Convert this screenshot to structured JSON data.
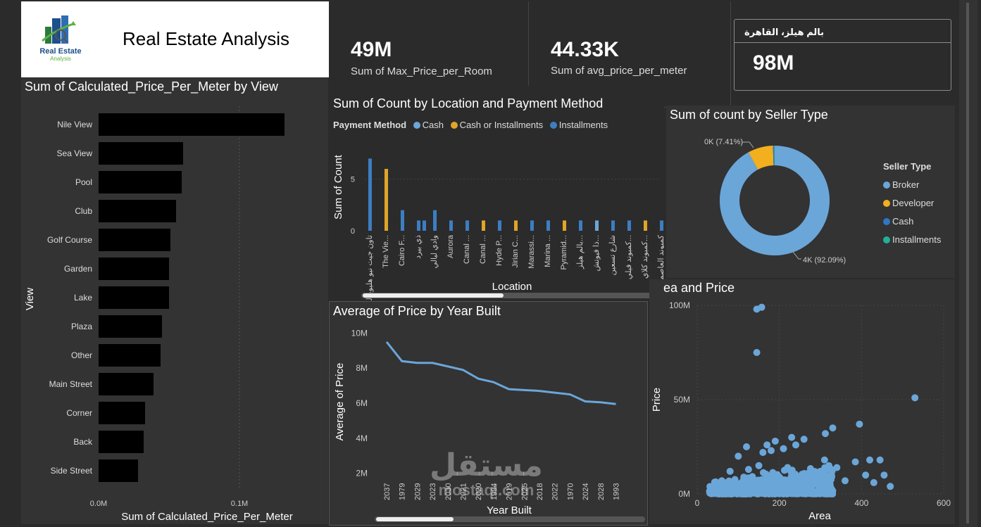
{
  "header": {
    "logo_line1": "Real Estate",
    "logo_line2": "Analysis",
    "title": "Real Estate Analysis"
  },
  "cards": [
    {
      "value": "49M",
      "label": "Sum of Max_Price_per_Room"
    },
    {
      "value": "44.33K",
      "label": "Sum of avg_price_per_meter"
    }
  ],
  "slicer": {
    "title": "بالم هيلز، القاهرة",
    "value": "98M"
  },
  "watermark": {
    "line1": "مستقل",
    "line2": "mostaql.com"
  },
  "colors": {
    "cash": "#6ba6d9",
    "cash_or_installments": "#e0a42a",
    "installments": "#3d7ec2",
    "broker": "#6ba6d9",
    "developer": "#f2b01e",
    "seller_cash": "#2b78c4",
    "seller_installments": "#21b09a"
  },
  "chart_data": [
    {
      "id": "view_bar",
      "type": "bar",
      "orientation": "horizontal",
      "title": "Sum of Calculated_Price_Per_Meter by View",
      "xlabel": "Sum of Calculated_Price_Per_Meter",
      "ylabel": "View",
      "categories": [
        "Nile View",
        "Sea View",
        "Pool",
        "Club",
        "Golf Course",
        "Garden",
        "Lake",
        "Plaza",
        "Other",
        "Main Street",
        "Corner",
        "Back",
        "Side Street"
      ],
      "values": [
        0.132,
        0.06,
        0.059,
        0.055,
        0.051,
        0.05,
        0.05,
        0.045,
        0.044,
        0.039,
        0.033,
        0.032,
        0.028
      ],
      "xlim": [
        0,
        0.16
      ],
      "xticks": [
        "0.0M",
        "0.1M"
      ],
      "bar_color": "#000000"
    },
    {
      "id": "location_column",
      "type": "bar",
      "title": "Sum of Count by Location and Payment Method",
      "xlabel": "Location",
      "ylabel": "Sum of Count",
      "legend_title": "Payment Method",
      "legend": [
        "Cash",
        "Cash or Installments",
        "Installments"
      ],
      "ylim": [
        0,
        7.5
      ],
      "yticks": [
        "0",
        "5"
      ],
      "categories": [
        "تاون جيت نيو هليوبوليس",
        "The Vie...",
        "Cairo F...",
        "ذي بيرد",
        "وادي ليالي",
        "Aurora",
        "Canal ...",
        "Canal ...",
        "Hyde P...",
        "Jirian C...",
        "Marassi...",
        "Marina ...",
        "Pyramid...",
        "بالم هيلز...",
        "ذا فيوتش...",
        "شارع تسعين",
        "كمبوند فيلي...",
        "كمبوند كلاي...",
        "كمبوند العاصمة"
      ],
      "bars": [
        {
          "cat": 0,
          "series": "Installments",
          "value": 7
        },
        {
          "cat": 1,
          "series": "Cash or Installments",
          "value": 6
        },
        {
          "cat": 2,
          "series": "Installments",
          "value": 2
        },
        {
          "cat": 3,
          "series": "Installments",
          "value": 1
        },
        {
          "cat": 3,
          "series": "Installments",
          "value": 1
        },
        {
          "cat": 4,
          "series": "Installments",
          "value": 2
        },
        {
          "cat": 5,
          "series": "Installments",
          "value": 1
        },
        {
          "cat": 6,
          "series": "Installments",
          "value": 1
        },
        {
          "cat": 7,
          "series": "Cash or Installments",
          "value": 1
        },
        {
          "cat": 8,
          "series": "Installments",
          "value": 1
        },
        {
          "cat": 9,
          "series": "Cash or Installments",
          "value": 1
        },
        {
          "cat": 10,
          "series": "Installments",
          "value": 1
        },
        {
          "cat": 11,
          "series": "Installments",
          "value": 1
        },
        {
          "cat": 12,
          "series": "Cash or Installments",
          "value": 1
        },
        {
          "cat": 13,
          "series": "Installments",
          "value": 1
        },
        {
          "cat": 14,
          "series": "Cash",
          "value": 1
        },
        {
          "cat": 15,
          "series": "Installments",
          "value": 1
        },
        {
          "cat": 16,
          "series": "Installments",
          "value": 1
        },
        {
          "cat": 17,
          "series": "Cash or Installments",
          "value": 1
        },
        {
          "cat": 18,
          "series": "Installments",
          "value": 1
        }
      ]
    },
    {
      "id": "seller_donut",
      "type": "pie",
      "title": "Sum of count by Seller Type",
      "legend_title": "Seller Type",
      "legend": [
        "Broker",
        "Developer",
        "Cash",
        "Installments"
      ],
      "slices": [
        {
          "name": "Broker",
          "value": 92.09,
          "label": "4K (92.09%)"
        },
        {
          "name": "Developer",
          "value": 7.41,
          "label": "0K (7.41%)"
        },
        {
          "name": "Cash",
          "value": 0.3,
          "label": ""
        },
        {
          "name": "Installments",
          "value": 0.2,
          "label": ""
        }
      ]
    },
    {
      "id": "price_line",
      "type": "line",
      "title": "Average of Price by Year Built",
      "xlabel": "Year Built",
      "ylabel": "Average of Price",
      "x": [
        "2037",
        "1979",
        "2029",
        "2023",
        "2030",
        "2021",
        "2020",
        "1994",
        "2019",
        "2025",
        "2018",
        "2022",
        "1970",
        "2024",
        "2028",
        "1993"
      ],
      "values": [
        9.5,
        8.4,
        8.3,
        8.3,
        8.1,
        7.9,
        7.4,
        7.2,
        6.8,
        6.75,
        6.7,
        6.6,
        6.5,
        6.1,
        6.05,
        5.95
      ],
      "ylim": [
        1.5,
        10.3
      ],
      "yticks": [
        2,
        4,
        6,
        8,
        10
      ],
      "ytick_labels": [
        "2M",
        "4M",
        "6M",
        "8M",
        "10M"
      ]
    },
    {
      "id": "area_scatter",
      "type": "scatter",
      "title": "ea and Price",
      "xlabel": "Area",
      "ylabel": "Price",
      "xlim": [
        0,
        600
      ],
      "ylim": [
        0,
        100
      ],
      "xticks": [
        0,
        200,
        400,
        600
      ],
      "yticks": [
        0,
        50,
        100
      ],
      "ytick_labels": [
        "0M",
        "50M",
        "100M"
      ],
      "points": [
        [
          145,
          98
        ],
        [
          157,
          99
        ],
        [
          145,
          75
        ],
        [
          530,
          51
        ],
        [
          395,
          37
        ],
        [
          330,
          35
        ],
        [
          312,
          32
        ],
        [
          230,
          30
        ],
        [
          260,
          29
        ],
        [
          190,
          28
        ],
        [
          240,
          26
        ],
        [
          170,
          26
        ],
        [
          120,
          25
        ],
        [
          210,
          24
        ],
        [
          180,
          23
        ],
        [
          160,
          22
        ],
        [
          100,
          20
        ],
        [
          420,
          18
        ],
        [
          385,
          17
        ],
        [
          310,
          18
        ],
        [
          445,
          18
        ],
        [
          340,
          14
        ],
        [
          220,
          14
        ],
        [
          150,
          15
        ],
        [
          125,
          13
        ],
        [
          80,
          12
        ],
        [
          455,
          10
        ],
        [
          410,
          10
        ],
        [
          470,
          4
        ],
        [
          430,
          6
        ],
        [
          360,
          7
        ],
        [
          250,
          6
        ],
        [
          60,
          7
        ],
        [
          50,
          5
        ],
        [
          40,
          3
        ],
        [
          35,
          1
        ],
        [
          300,
          12
        ],
        [
          280,
          10
        ],
        [
          200,
          9
        ]
      ],
      "cluster": {
        "x_range": [
          30,
          330
        ],
        "y_range": [
          0,
          16
        ],
        "note": "dense cloud"
      }
    }
  ]
}
